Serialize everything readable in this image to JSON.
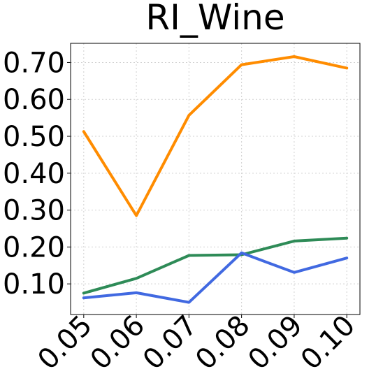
{
  "chart_data": {
    "type": "line",
    "title": "RI_Wine",
    "xlabel": "",
    "ylabel": "",
    "x": [
      0.05,
      0.06,
      0.07,
      0.08,
      0.09,
      0.1
    ],
    "x_tick_labels": [
      "0.05",
      "0.06",
      "0.07",
      "0.08",
      "0.09",
      "0.10"
    ],
    "y_ticks": [
      0.1,
      0.2,
      0.3,
      0.4,
      0.5,
      0.6,
      0.7
    ],
    "y_tick_labels": [
      "0.10",
      "0.20",
      "0.30",
      "0.40",
      "0.50",
      "0.60",
      "0.70"
    ],
    "xlim": [
      0.0475,
      0.1025
    ],
    "ylim": [
      0.017,
      0.752
    ],
    "grid": true,
    "series": [
      {
        "color": "#ff8c00",
        "values": [
          0.513,
          0.285,
          0.557,
          0.694,
          0.716,
          0.685
        ]
      },
      {
        "color": "#2e8b57",
        "values": [
          0.075,
          0.115,
          0.177,
          0.179,
          0.216,
          0.224
        ]
      },
      {
        "color": "#4169e1",
        "values": [
          0.062,
          0.076,
          0.05,
          0.184,
          0.131,
          0.17
        ]
      }
    ]
  }
}
